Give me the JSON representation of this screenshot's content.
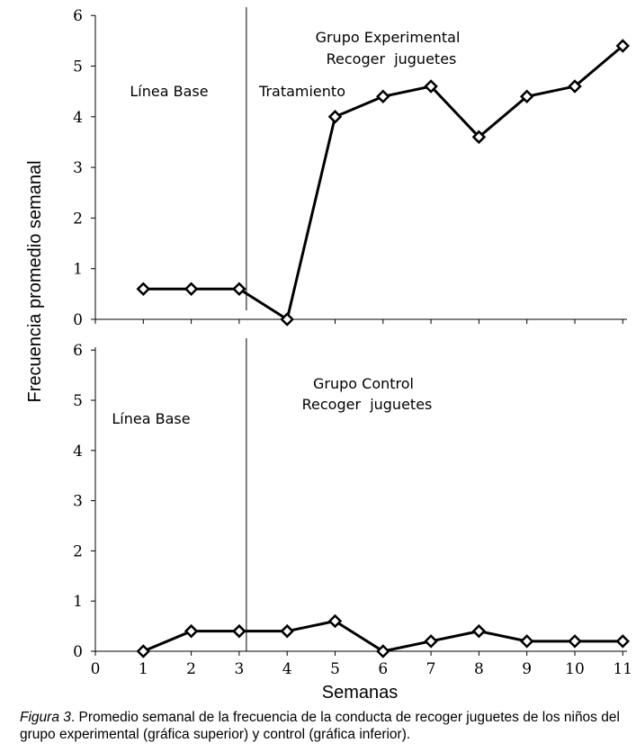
{
  "chart_data": [
    {
      "type": "line",
      "title": "Grupo Experimental",
      "subtitle": "Recoger  juguetes",
      "annotations": [
        "Línea Base",
        "Tratamiento"
      ],
      "x": [
        1,
        2,
        3,
        4,
        5,
        6,
        7,
        8,
        9,
        10,
        11
      ],
      "series": [
        {
          "name": "Grupo Experimental",
          "values": [
            0.6,
            0.6,
            0.6,
            0,
            4,
            4.4,
            4.6,
            3.6,
            4.4,
            4.6,
            5.4
          ]
        }
      ],
      "phase_change_x": 3.15,
      "xlim": [
        0,
        11
      ],
      "ylim": [
        0,
        6
      ],
      "yticks": [
        "0",
        "1",
        "2",
        "3",
        "4",
        "5",
        "6"
      ],
      "marker": "diamond-open"
    },
    {
      "type": "line",
      "title": "Grupo Control",
      "subtitle": "Recoger  juguetes",
      "annotations": [
        "Línea Base"
      ],
      "x": [
        1,
        2,
        3,
        4,
        5,
        6,
        7,
        8,
        9,
        10,
        11
      ],
      "series": [
        {
          "name": "Grupo Control",
          "values": [
            0,
            0.4,
            0.4,
            0.4,
            0.6,
            0,
            0.2,
            0.4,
            0.2,
            0.2,
            0.2
          ]
        }
      ],
      "phase_change_x": 3.15,
      "xlim": [
        0,
        11
      ],
      "ylim": [
        0,
        6
      ],
      "yticks": [
        "0",
        "1",
        "2",
        "3",
        "4",
        "5",
        "6"
      ],
      "xticks": [
        "0",
        "1",
        "2",
        "3",
        "4",
        "5",
        "6",
        "7",
        "8",
        "9",
        "10",
        "11"
      ],
      "marker": "diamond-open"
    }
  ],
  "shared": {
    "xlabel": "Semanas",
    "ylabel": "Frecuencia promedio semanal"
  },
  "caption": {
    "figure_label": "Figura 3",
    "text": ". Promedio semanal de la frecuencia de la conducta de recoger juguetes de los niños del grupo experimental (gráfica superior) y control (gráfica inferior)."
  }
}
